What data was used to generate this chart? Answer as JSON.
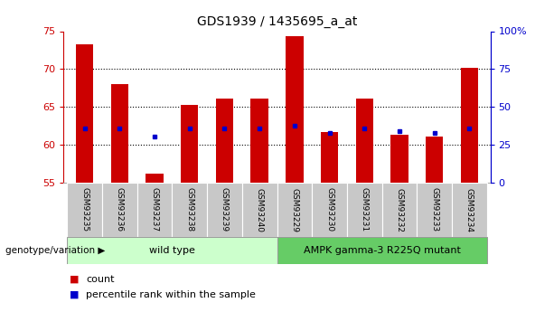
{
  "title": "GDS1939 / 1435695_a_at",
  "samples": [
    "GSM93235",
    "GSM93236",
    "GSM93237",
    "GSM93238",
    "GSM93239",
    "GSM93240",
    "GSM93229",
    "GSM93230",
    "GSM93231",
    "GSM93232",
    "GSM93233",
    "GSM93234"
  ],
  "bar_heights": [
    73.3,
    68.0,
    56.2,
    65.3,
    66.1,
    66.1,
    74.3,
    61.7,
    66.1,
    61.3,
    61.1,
    70.2
  ],
  "blue_dots": [
    62.2,
    62.2,
    61.1,
    62.1,
    62.2,
    62.2,
    62.5,
    61.6,
    62.2,
    61.8,
    61.6,
    62.2
  ],
  "ymin": 55,
  "ymax": 75,
  "yticks": [
    55,
    60,
    65,
    70,
    75
  ],
  "ylabel_left_color": "#cc0000",
  "ylabel_right_color": "#0000cc",
  "right_ytick_vals": [
    0,
    25,
    50,
    75,
    100
  ],
  "right_ytick_labels": [
    "0",
    "25",
    "50",
    "75",
    "100%"
  ],
  "bar_color": "#cc0000",
  "dot_color": "#0000cc",
  "wild_type_label": "wild type",
  "mutant_label": "AMPK gamma-3 R225Q mutant",
  "wild_type_indices": [
    0,
    1,
    2,
    3,
    4,
    5
  ],
  "mutant_indices": [
    6,
    7,
    8,
    9,
    10,
    11
  ],
  "genotype_label": "genotype/variation",
  "legend_count": "count",
  "legend_percentile": "percentile rank within the sample",
  "wild_type_color": "#ccffcc",
  "mutant_color": "#66cc66",
  "tick_bg_color": "#c8c8c8",
  "bar_width": 0.5,
  "figsize": [
    6.13,
    3.45
  ],
  "dpi": 100
}
